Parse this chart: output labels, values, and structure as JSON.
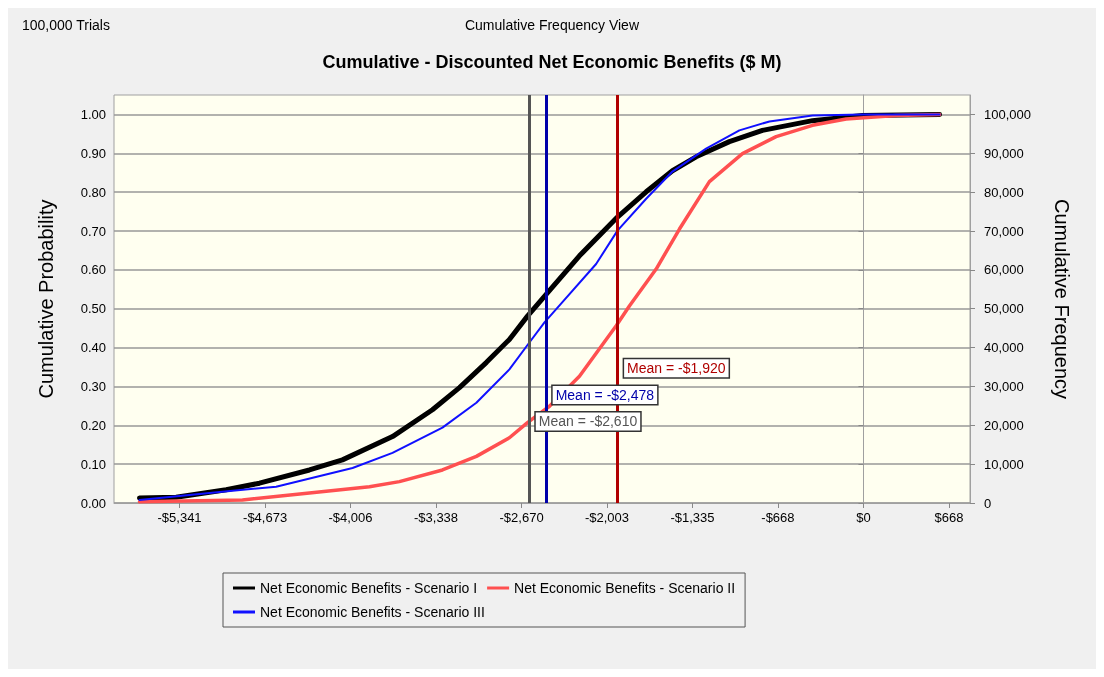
{
  "chart_data": {
    "type": "line",
    "title": "Cumulative - Discounted Net Economic Benefits ($ M)",
    "annotations": [
      "100,000 Trials",
      "Cumulative Frequency View"
    ],
    "ylabel": "Cumulative Probability",
    "y2label": "Cumulative Frequency",
    "xlim": [
      -5853,
      832
    ],
    "ylim": [
      0,
      1.05
    ],
    "y2lim": [
      0,
      105000
    ],
    "xticks": [
      {
        "value": -5341,
        "label": "-$5,341"
      },
      {
        "value": -4673,
        "label": "-$4,673"
      },
      {
        "value": -4006,
        "label": "-$4,006"
      },
      {
        "value": -3338,
        "label": "-$3,338"
      },
      {
        "value": -2670,
        "label": "-$2,670"
      },
      {
        "value": -2003,
        "label": "-$2,003"
      },
      {
        "value": -1335,
        "label": "-$1,335"
      },
      {
        "value": -668,
        "label": "-$668"
      },
      {
        "value": 0,
        "label": "$0"
      },
      {
        "value": 668,
        "label": "$668"
      }
    ],
    "yticks": [
      {
        "value": 0,
        "label": "0.00"
      },
      {
        "value": 0.1,
        "label": "0.10"
      },
      {
        "value": 0.2,
        "label": "0.20"
      },
      {
        "value": 0.3,
        "label": "0.30"
      },
      {
        "value": 0.4,
        "label": "0.40"
      },
      {
        "value": 0.5,
        "label": "0.50"
      },
      {
        "value": 0.6,
        "label": "0.60"
      },
      {
        "value": 0.7,
        "label": "0.70"
      },
      {
        "value": 0.8,
        "label": "0.80"
      },
      {
        "value": 0.9,
        "label": "0.90"
      },
      {
        "value": 1,
        "label": "1.00"
      }
    ],
    "y2ticks": [
      0,
      {
        "value": 10000,
        "label": "10,000"
      },
      {
        "value": 20000,
        "label": "20,000"
      },
      {
        "value": 30000,
        "label": "30,000"
      },
      {
        "value": 40000,
        "label": "40,000"
      },
      {
        "value": 50000,
        "label": "50,000"
      },
      {
        "value": 60000,
        "label": "60,000"
      },
      {
        "value": 70000,
        "label": "70,000"
      },
      {
        "value": 80000,
        "label": "80,000"
      },
      {
        "value": 90000,
        "label": "90,000"
      },
      {
        "value": 100000,
        "label": "100,000"
      }
    ],
    "grid": "y",
    "legend": "bottom",
    "marker": "none",
    "line_style": "solid",
    "series": [
      {
        "name": "Net Economic Benefits - Scenario I",
        "color": "#000000",
        "x": [
          -5654,
          -5368,
          -4977,
          -4717,
          -4327,
          -4069,
          -3678,
          -3366,
          -3155,
          -2944,
          -2765,
          -2624,
          -2478,
          -2218,
          -1921,
          -1697,
          -1492,
          -1307,
          -1047,
          -789,
          -398,
          -8,
          594
        ],
        "values": [
          0.013,
          0.015,
          0.034,
          0.051,
          0.085,
          0.111,
          0.171,
          0.24,
          0.297,
          0.362,
          0.421,
          0.481,
          0.537,
          0.636,
          0.736,
          0.801,
          0.855,
          0.891,
          0.93,
          0.959,
          0.984,
          0.997,
          1.0
        ]
      },
      {
        "name": "Net Economic Benefits - Scenario II",
        "color": "#ff5050",
        "x": [
          -5654,
          -4850,
          -4327,
          -3858,
          -3624,
          -3288,
          -3023,
          -2765,
          -2624,
          -2452,
          -2218,
          -1931,
          -1828,
          -1619,
          -1437,
          -1203,
          -945,
          -682,
          -398,
          -135,
          255,
          594
        ],
        "values": [
          0.003,
          0.008,
          0.026,
          0.042,
          0.055,
          0.085,
          0.12,
          0.168,
          0.207,
          0.249,
          0.326,
          0.456,
          0.507,
          0.602,
          0.705,
          0.827,
          0.899,
          0.943,
          0.972,
          0.988,
          0.997,
          1.0
        ]
      },
      {
        "name": "Net Economic Benefits - Scenario III",
        "color": "#1010ff",
        "x": [
          -5654,
          -5108,
          -4587,
          -3990,
          -3678,
          -3288,
          -3023,
          -2765,
          -2609,
          -2491,
          -2351,
          -2088,
          -1921,
          -1697,
          -1492,
          -1229,
          -969,
          -734,
          -398,
          -8,
          594
        ],
        "values": [
          0.008,
          0.026,
          0.042,
          0.09,
          0.129,
          0.194,
          0.258,
          0.344,
          0.413,
          0.465,
          0.517,
          0.615,
          0.701,
          0.783,
          0.853,
          0.912,
          0.959,
          0.982,
          0.997,
          1.0,
          1.0
        ]
      }
    ],
    "ref_lines": [
      {
        "axis": "x",
        "value": -2610,
        "label": "Mean = -$2,610",
        "color": "#555555"
      },
      {
        "axis": "x",
        "value": -2478,
        "label": "Mean = -$2,478",
        "color": "#0000aa"
      },
      {
        "axis": "x",
        "value": -1920,
        "label": "Mean = -$1,920",
        "color": "#b00000"
      }
    ]
  }
}
